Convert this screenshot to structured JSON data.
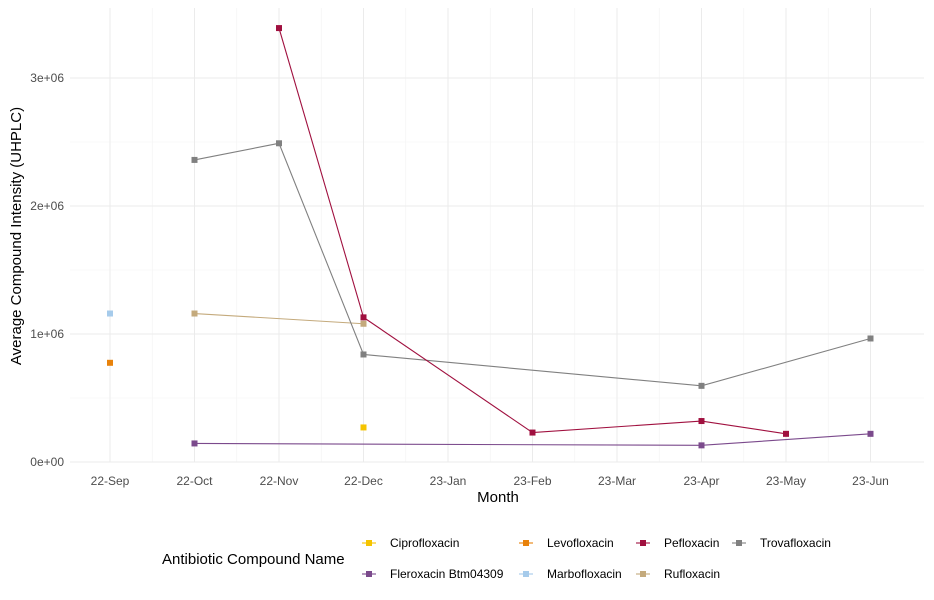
{
  "chart_data": {
    "type": "line",
    "xlabel": "Month",
    "ylabel": "Average Compound Intensity (UHPLC)",
    "categories": [
      "22-Sep",
      "22-Oct",
      "22-Nov",
      "22-Dec",
      "23-Jan",
      "23-Feb",
      "23-Mar",
      "23-Apr",
      "23-May",
      "23-Jun"
    ],
    "ylim": [
      0,
      3400000
    ],
    "y_ticks": [
      0,
      1000000,
      2000000,
      3000000
    ],
    "y_tick_labels": [
      "0e+00",
      "1e+06",
      "2e+06",
      "3e+06"
    ],
    "grid": true,
    "legend": {
      "title": "Antibiotic Compound Name",
      "position": "bottom",
      "columns": [
        [
          "Ciprofloxacin",
          "Fleroxacin Btm04309"
        ],
        [
          "Levofloxacin",
          "Marbofloxacin"
        ],
        [
          "Pefloxacin",
          "Rufloxacin"
        ],
        [
          "Trovafloxacin"
        ]
      ]
    },
    "series": [
      {
        "name": "Ciprofloxacin",
        "color": "#f5c400",
        "points": [
          [
            "22-Dec",
            270000
          ]
        ]
      },
      {
        "name": "Fleroxacin Btm04309",
        "color": "#7b4a8c",
        "points": [
          [
            "22-Oct",
            145000
          ],
          [
            "23-Apr",
            130000
          ],
          [
            "23-Jun",
            220000
          ]
        ]
      },
      {
        "name": "Levofloxacin",
        "color": "#e8820b",
        "points": [
          [
            "22-Sep",
            775000
          ]
        ]
      },
      {
        "name": "Marbofloxacin",
        "color": "#a6cbeb",
        "points": [
          [
            "22-Sep",
            1160000
          ]
        ]
      },
      {
        "name": "Pefloxacin",
        "color": "#a0103f",
        "points": [
          [
            "22-Nov",
            3390000
          ],
          [
            "22-Dec",
            1130000
          ],
          [
            "23-Feb",
            230000
          ],
          [
            "23-Apr",
            320000
          ],
          [
            "23-May",
            220000
          ]
        ]
      },
      {
        "name": "Rufloxacin",
        "color": "#c4aa7c",
        "points": [
          [
            "22-Oct",
            1160000
          ],
          [
            "22-Dec",
            1080000
          ]
        ]
      },
      {
        "name": "Trovafloxacin",
        "color": "#808080",
        "points": [
          [
            "22-Oct",
            2360000
          ],
          [
            "22-Nov",
            2490000
          ],
          [
            "22-Dec",
            840000
          ],
          [
            "23-Apr",
            595000
          ],
          [
            "23-Jun",
            965000
          ]
        ]
      }
    ]
  }
}
